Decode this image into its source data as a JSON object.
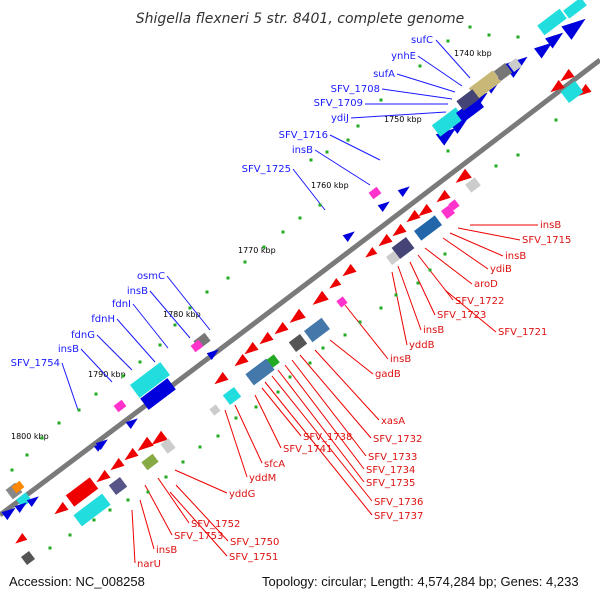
{
  "title": "Shigella flexneri 5 str. 8401, complete genome",
  "accession": "Accession: NC_008258",
  "topology": "Topology: circular; Length: 4,574,284 bp; Genes: 4,233",
  "colors": {
    "plus_strand": "#0000dd",
    "minus_strand": "#ee0000",
    "backbone": "#808080",
    "blue_label": "#1a1aff",
    "red_label": "#dd1111",
    "rna_marker": "#22aa22"
  },
  "kbp_labels": [
    "1740 kbp",
    "1750 kbp",
    "1760 kbp",
    "1770 kbp",
    "1780 kbp",
    "1790 kbp",
    "1800 kbp"
  ],
  "plus_labels": [
    "sufC",
    "ynhE",
    "sufA",
    "SFV_1708",
    "SFV_1709",
    "ydiJ",
    "SFV_1716",
    "insB",
    "SFV_1725",
    "osmC",
    "insB",
    "fdnI",
    "fdnH",
    "fdnG",
    "insB",
    "SFV_1754"
  ],
  "minus_labels": [
    "insB",
    "SFV_1715",
    "insB",
    "ydiB",
    "aroD",
    "SFV_1722",
    "SFV_1723",
    "SFV_1721",
    "insB",
    "yddB",
    "insB",
    "gadB",
    "xasA",
    "SFV_1732",
    "SFV_1733",
    "SFV_1734",
    "SFV_1735",
    "SFV_1736",
    "SFV_1737",
    "SFV_1738",
    "SFV_1741",
    "sfcA",
    "yddM",
    "yddG",
    "SFV_1752",
    "SFV_1753",
    "SFV_1750",
    "SFV_1751",
    "insB",
    "narU"
  ]
}
